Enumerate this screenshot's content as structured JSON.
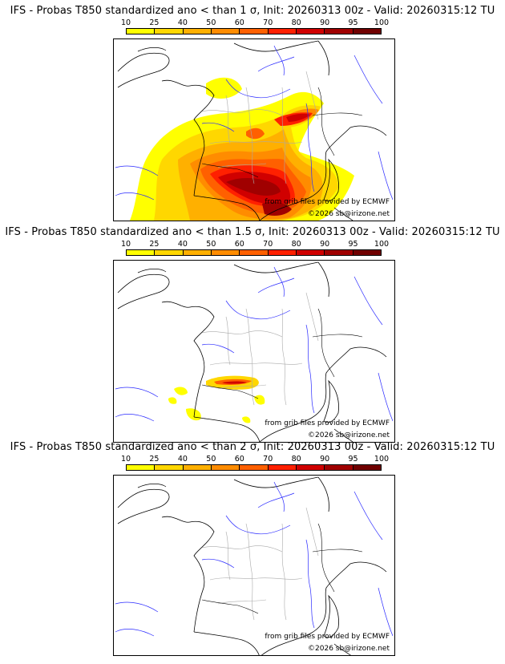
{
  "legend": {
    "labels": [
      "10",
      "25",
      "40",
      "50",
      "60",
      "70",
      "80",
      "90",
      "95",
      "100"
    ],
    "colors": [
      "#ffff00",
      "#ffd700",
      "#ffb000",
      "#ff8c00",
      "#ff6000",
      "#ff2000",
      "#d00000",
      "#a00000",
      "#700000"
    ]
  },
  "credits": {
    "source": "from grib files provided by ECMWF",
    "copyright": "©2026 sb@irizone.net"
  },
  "panels": [
    {
      "title": "IFS - Probas T850  standardized ano < than 1 σ, Init: 20260313 00z - Valid: 20260315:12 TU"
    },
    {
      "title": "IFS - Probas T850  standardized ano < than 1.5 σ, Init: 20260313 00z - Valid: 20260315:12 TU"
    },
    {
      "title": "IFS - Probas T850  standardized ano < than 2 σ, Init: 20260313 00z - Valid: 20260315:12 TU"
    }
  ]
}
